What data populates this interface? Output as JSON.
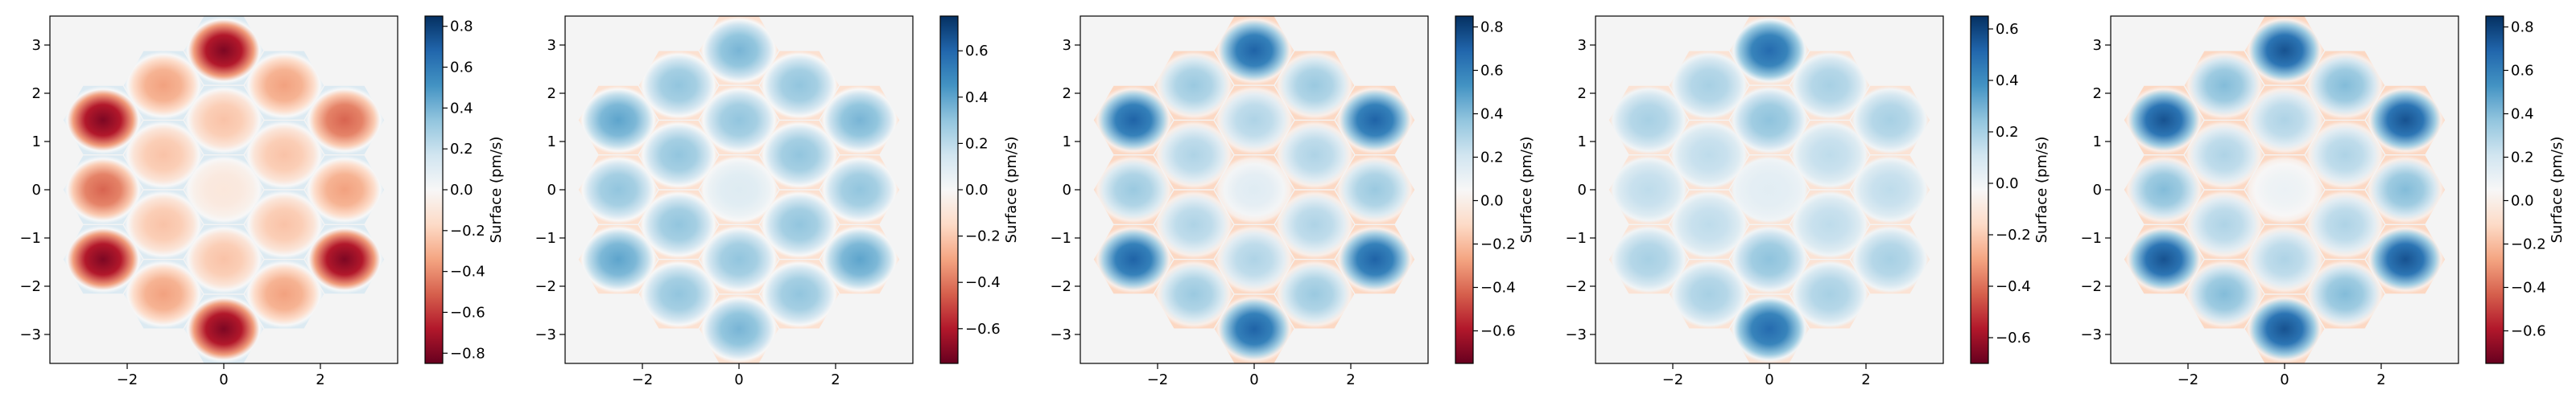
{
  "chart_data": [
    {
      "type": "heatmap",
      "title": "",
      "xlabel": "",
      "ylabel": "",
      "xlim": [
        -3.6,
        3.6
      ],
      "ylim": [
        -3.6,
        3.6
      ],
      "xticks": [
        -2,
        0,
        2
      ],
      "yticks": [
        -3,
        -2,
        -1,
        0,
        1,
        2,
        3
      ],
      "xticklabels": [
        "−2",
        "0",
        "2"
      ],
      "yticklabels": [
        "−3",
        "−2",
        "−1",
        "0",
        "1",
        "2",
        "3"
      ],
      "colorbar": {
        "label": "Surface (pm/s)",
        "vmin": -0.85,
        "vmax": 0.85,
        "ticks": [
          -0.8,
          -0.6,
          -0.4,
          -0.2,
          0.0,
          0.2,
          0.4,
          0.6,
          0.8
        ],
        "ticklabels": [
          "−0.8",
          "−0.6",
          "−0.4",
          "−0.2",
          "0.0",
          "0.2",
          "0.4",
          "0.6",
          "0.8"
        ],
        "colormap": "RdBu"
      },
      "segment_centers": [
        {
          "q": 0,
          "r": 0,
          "value": -0.1
        },
        {
          "q": 1,
          "r": 0,
          "value": -0.25
        },
        {
          "q": 1,
          "r": -1,
          "value": -0.25
        },
        {
          "q": 0,
          "r": -1,
          "value": -0.25
        },
        {
          "q": -1,
          "r": 0,
          "value": -0.25
        },
        {
          "q": -1,
          "r": 1,
          "value": -0.25
        },
        {
          "q": 0,
          "r": 1,
          "value": -0.25
        },
        {
          "q": 2,
          "r": 0,
          "value": -0.5
        },
        {
          "q": 2,
          "r": -1,
          "value": -0.35
        },
        {
          "q": 2,
          "r": -2,
          "value": -0.8
        },
        {
          "q": 1,
          "r": -2,
          "value": -0.35
        },
        {
          "q": 0,
          "r": -2,
          "value": -0.8
        },
        {
          "q": -1,
          "r": -1,
          "value": -0.35
        },
        {
          "q": -2,
          "r": 0,
          "value": -0.8
        },
        {
          "q": -2,
          "r": 1,
          "value": -0.5
        },
        {
          "q": -2,
          "r": 2,
          "value": -0.8
        },
        {
          "q": -1,
          "r": 2,
          "value": -0.35
        },
        {
          "q": 0,
          "r": 2,
          "value": -0.8
        },
        {
          "q": 1,
          "r": 1,
          "value": -0.35
        }
      ]
    },
    {
      "type": "heatmap",
      "title": "",
      "xlabel": "",
      "ylabel": "",
      "xlim": [
        -3.6,
        3.6
      ],
      "ylim": [
        -3.6,
        3.6
      ],
      "xticks": [
        -2,
        0,
        2
      ],
      "yticks": [
        -3,
        -2,
        -1,
        0,
        1,
        2,
        3
      ],
      "xticklabels": [
        "−2",
        "0",
        "2"
      ],
      "yticklabels": [
        "−3",
        "−2",
        "−1",
        "0",
        "1",
        "2",
        "3"
      ],
      "colorbar": {
        "label": "Surface (pm/s)",
        "vmin": -0.75,
        "vmax": 0.75,
        "ticks": [
          -0.6,
          -0.4,
          -0.2,
          0.0,
          0.2,
          0.4,
          0.6
        ],
        "ticklabels": [
          "−0.6",
          "−0.4",
          "−0.2",
          "0.0",
          "0.2",
          "0.4",
          "0.6"
        ],
        "colormap": "RdBu"
      },
      "segment_centers": [
        {
          "q": 0,
          "r": 0,
          "value": 0.1
        },
        {
          "q": 1,
          "r": 0,
          "value": 0.3
        },
        {
          "q": 1,
          "r": -1,
          "value": 0.3
        },
        {
          "q": 0,
          "r": -1,
          "value": 0.3
        },
        {
          "q": -1,
          "r": 0,
          "value": 0.3
        },
        {
          "q": -1,
          "r": 1,
          "value": 0.3
        },
        {
          "q": 0,
          "r": 1,
          "value": 0.3
        },
        {
          "q": 2,
          "r": 0,
          "value": 0.35
        },
        {
          "q": 2,
          "r": -1,
          "value": 0.3
        },
        {
          "q": 2,
          "r": -2,
          "value": 0.4
        },
        {
          "q": 1,
          "r": -2,
          "value": 0.3
        },
        {
          "q": 0,
          "r": -2,
          "value": 0.35
        },
        {
          "q": -1,
          "r": -1,
          "value": 0.3
        },
        {
          "q": -2,
          "r": 0,
          "value": 0.4
        },
        {
          "q": -2,
          "r": 1,
          "value": 0.3
        },
        {
          "q": -2,
          "r": 2,
          "value": 0.4
        },
        {
          "q": -1,
          "r": 2,
          "value": 0.3
        },
        {
          "q": 0,
          "r": 2,
          "value": 0.35
        },
        {
          "q": 1,
          "r": 1,
          "value": 0.3
        }
      ]
    },
    {
      "type": "heatmap",
      "title": "",
      "xlabel": "",
      "ylabel": "",
      "xlim": [
        -3.6,
        3.6
      ],
      "ylim": [
        -3.6,
        3.6
      ],
      "xticks": [
        -2,
        0,
        2
      ],
      "yticks": [
        -3,
        -2,
        -1,
        0,
        1,
        2,
        3
      ],
      "xticklabels": [
        "−2",
        "0",
        "2"
      ],
      "yticklabels": [
        "−3",
        "−2",
        "−1",
        "0",
        "1",
        "2",
        "3"
      ],
      "colorbar": {
        "label": "Surface (pm/s)",
        "vmin": -0.75,
        "vmax": 0.85,
        "ticks": [
          -0.6,
          -0.4,
          -0.2,
          0.0,
          0.2,
          0.4,
          0.6,
          0.8
        ],
        "ticklabels": [
          "−0.6",
          "−0.4",
          "−0.2",
          "0.0",
          "0.2",
          "0.4",
          "0.6",
          "0.8"
        ],
        "colormap": "RdBu"
      },
      "segment_centers": [
        {
          "q": 0,
          "r": 0,
          "value": 0.15
        },
        {
          "q": 1,
          "r": 0,
          "value": 0.3
        },
        {
          "q": 1,
          "r": -1,
          "value": 0.3
        },
        {
          "q": 0,
          "r": -1,
          "value": 0.3
        },
        {
          "q": -1,
          "r": 0,
          "value": 0.3
        },
        {
          "q": -1,
          "r": 1,
          "value": 0.3
        },
        {
          "q": 0,
          "r": 1,
          "value": 0.3
        },
        {
          "q": 2,
          "r": 0,
          "value": 0.7
        },
        {
          "q": 2,
          "r": -1,
          "value": 0.35
        },
        {
          "q": 2,
          "r": -2,
          "value": 0.7
        },
        {
          "q": 1,
          "r": -2,
          "value": 0.35
        },
        {
          "q": 0,
          "r": -2,
          "value": 0.7
        },
        {
          "q": -1,
          "r": -1,
          "value": 0.35
        },
        {
          "q": -2,
          "r": 0,
          "value": 0.7
        },
        {
          "q": -2,
          "r": 1,
          "value": 0.35
        },
        {
          "q": -2,
          "r": 2,
          "value": 0.7
        },
        {
          "q": -1,
          "r": 2,
          "value": 0.35
        },
        {
          "q": 0,
          "r": 2,
          "value": 0.7
        },
        {
          "q": 1,
          "r": 1,
          "value": 0.35
        }
      ]
    },
    {
      "type": "heatmap",
      "title": "",
      "xlabel": "",
      "ylabel": "",
      "xlim": [
        -3.6,
        3.6
      ],
      "ylim": [
        -3.6,
        3.6
      ],
      "xticks": [
        -2,
        0,
        2
      ],
      "yticks": [
        -3,
        -2,
        -1,
        0,
        1,
        2,
        3
      ],
      "xticklabels": [
        "−2",
        "0",
        "2"
      ],
      "yticklabels": [
        "−3",
        "−2",
        "−1",
        "0",
        "1",
        "2",
        "3"
      ],
      "colorbar": {
        "label": "Surface (pm/s)",
        "vmin": -0.7,
        "vmax": 0.65,
        "ticks": [
          -0.6,
          -0.4,
          -0.2,
          0.0,
          0.2,
          0.4,
          0.6
        ],
        "ticklabels": [
          "−0.6",
          "−0.4",
          "−0.2",
          "0.0",
          "0.2",
          "0.4",
          "0.6"
        ],
        "colormap": "RdBu"
      },
      "segment_centers": [
        {
          "q": 0,
          "r": 0,
          "value": 0.05
        },
        {
          "q": 1,
          "r": 0,
          "value": 0.15
        },
        {
          "q": 1,
          "r": -1,
          "value": 0.15
        },
        {
          "q": 0,
          "r": -1,
          "value": 0.25
        },
        {
          "q": -1,
          "r": 0,
          "value": 0.15
        },
        {
          "q": -1,
          "r": 1,
          "value": 0.15
        },
        {
          "q": 0,
          "r": 1,
          "value": 0.25
        },
        {
          "q": 2,
          "r": 0,
          "value": 0.2
        },
        {
          "q": 2,
          "r": -1,
          "value": 0.15
        },
        {
          "q": 2,
          "r": -2,
          "value": 0.2
        },
        {
          "q": 1,
          "r": -2,
          "value": 0.2
        },
        {
          "q": 0,
          "r": -2,
          "value": 0.5
        },
        {
          "q": -1,
          "r": -1,
          "value": 0.2
        },
        {
          "q": -2,
          "r": 0,
          "value": 0.2
        },
        {
          "q": -2,
          "r": 1,
          "value": 0.15
        },
        {
          "q": -2,
          "r": 2,
          "value": 0.2
        },
        {
          "q": -1,
          "r": 2,
          "value": 0.2
        },
        {
          "q": 0,
          "r": 2,
          "value": 0.5
        },
        {
          "q": 1,
          "r": 1,
          "value": 0.2
        }
      ]
    },
    {
      "type": "heatmap",
      "title": "",
      "xlabel": "",
      "ylabel": "",
      "xlim": [
        -3.6,
        3.6
      ],
      "ylim": [
        -3.6,
        3.6
      ],
      "xticks": [
        -2,
        0,
        2
      ],
      "yticks": [
        -3,
        -2,
        -1,
        0,
        1,
        2,
        3
      ],
      "xticklabels": [
        "−2",
        "0",
        "2"
      ],
      "yticklabels": [
        "−3",
        "−2",
        "−1",
        "0",
        "1",
        "2",
        "3"
      ],
      "colorbar": {
        "label": "Surface (pm/s)",
        "vmin": -0.75,
        "vmax": 0.85,
        "ticks": [
          -0.6,
          -0.4,
          -0.2,
          0.0,
          0.2,
          0.4,
          0.6,
          0.8
        ],
        "ticklabels": [
          "−0.6",
          "−0.4",
          "−0.2",
          "0.0",
          "0.2",
          "0.4",
          "0.6",
          "0.8"
        ],
        "colormap": "RdBu"
      },
      "segment_centers": [
        {
          "q": 0,
          "r": 0,
          "value": 0.1
        },
        {
          "q": 1,
          "r": 0,
          "value": 0.3
        },
        {
          "q": 1,
          "r": -1,
          "value": 0.3
        },
        {
          "q": 0,
          "r": -1,
          "value": 0.3
        },
        {
          "q": -1,
          "r": 0,
          "value": 0.3
        },
        {
          "q": -1,
          "r": 1,
          "value": 0.3
        },
        {
          "q": 0,
          "r": 1,
          "value": 0.3
        },
        {
          "q": 2,
          "r": 0,
          "value": 0.75
        },
        {
          "q": 2,
          "r": -1,
          "value": 0.4
        },
        {
          "q": 2,
          "r": -2,
          "value": 0.75
        },
        {
          "q": 1,
          "r": -2,
          "value": 0.4
        },
        {
          "q": 0,
          "r": -2,
          "value": 0.75
        },
        {
          "q": -1,
          "r": -1,
          "value": 0.4
        },
        {
          "q": -2,
          "r": 0,
          "value": 0.75
        },
        {
          "q": -2,
          "r": 1,
          "value": 0.4
        },
        {
          "q": -2,
          "r": 2,
          "value": 0.75
        },
        {
          "q": -1,
          "r": 2,
          "value": 0.4
        },
        {
          "q": 0,
          "r": 2,
          "value": 0.75
        },
        {
          "q": 1,
          "r": 1,
          "value": 0.4
        }
      ]
    }
  ]
}
